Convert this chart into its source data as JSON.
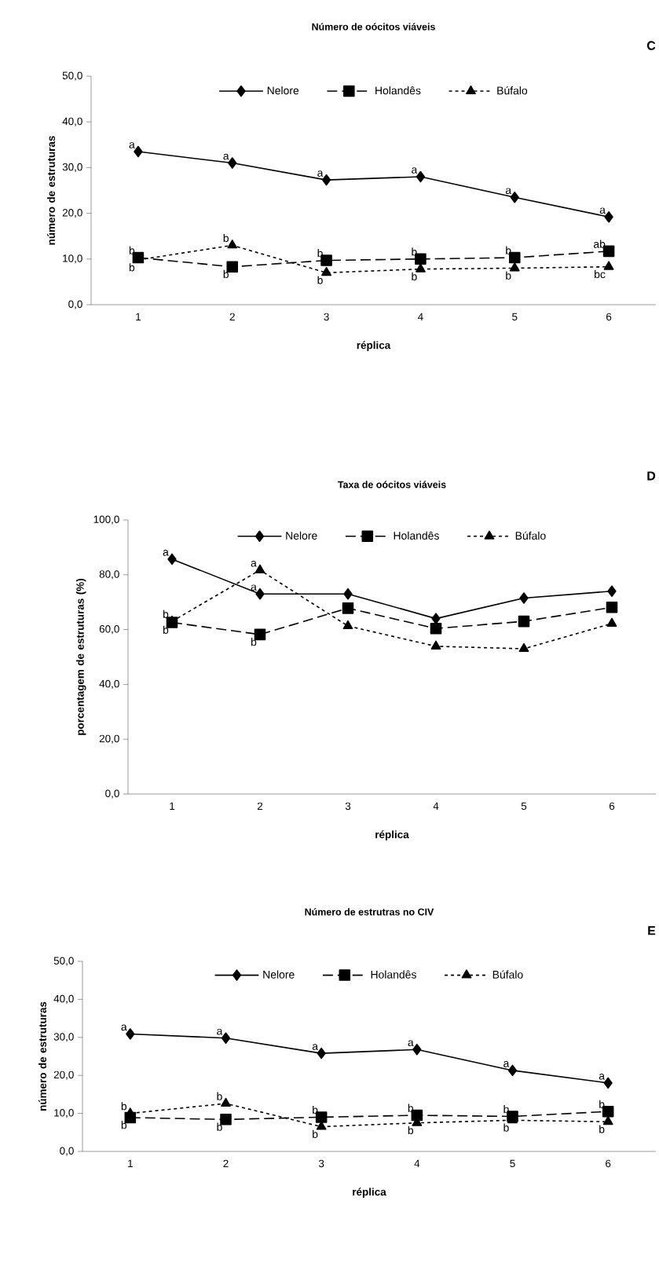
{
  "chart_data": [
    {
      "type": "line",
      "title": "Número de oócitos viáveis",
      "xlabel": "réplica",
      "ylabel": "número de estruturas",
      "categories": [
        "1",
        "2",
        "3",
        "4",
        "5",
        "6"
      ],
      "series": [
        {
          "name": "Nelore",
          "color": "#000000",
          "marker": "diamond",
          "line_style": "solid",
          "values": [
            33.5,
            31.0,
            27.3,
            28.0,
            23.5,
            19.2
          ]
        },
        {
          "name": "Holandês",
          "color": "#000000",
          "marker": "square",
          "line_style": "dashed",
          "values": [
            10.3,
            8.3,
            9.7,
            10.0,
            10.3,
            11.7
          ]
        },
        {
          "name": "Búfalo",
          "color": "#000000",
          "marker": "triangle",
          "line_style": "dotted",
          "values": [
            9.8,
            13.0,
            7.0,
            7.8,
            8.0,
            8.3
          ]
        }
      ],
      "ylim": [
        0,
        50
      ],
      "yticks": [
        {
          "value": 0,
          "label": "0,0"
        },
        {
          "value": 10,
          "label": "10,0"
        },
        {
          "value": 20,
          "label": "20,0"
        },
        {
          "value": 30,
          "label": "30,0"
        },
        {
          "value": 40,
          "label": "40,0"
        },
        {
          "value": 50,
          "label": "50,0"
        }
      ],
      "legend": "top",
      "annotations": [
        "C",
        {
          "text": "a",
          "x": "1",
          "y": 33.5
        },
        {
          "text": "b",
          "x": "1",
          "y": 10.3
        },
        {
          "text": "b",
          "x": "1",
          "y": 9.8
        },
        {
          "text": "a",
          "x": "2",
          "y": 31.0
        },
        {
          "text": "b",
          "x": "2",
          "y": 13.0
        },
        {
          "text": "b",
          "x": "2",
          "y": 8.3
        },
        {
          "text": "a",
          "x": "3",
          "y": 27.3
        },
        {
          "text": "b",
          "x": "3",
          "y": 9.7
        },
        {
          "text": "b",
          "x": "3",
          "y": 7.0
        },
        {
          "text": "a",
          "x": "4",
          "y": 28.0
        },
        {
          "text": "b",
          "x": "4",
          "y": 10.0
        },
        {
          "text": "b",
          "x": "4",
          "y": 7.8
        },
        {
          "text": "a",
          "x": "5",
          "y": 23.5
        },
        {
          "text": "b",
          "x": "5",
          "y": 10.3
        },
        {
          "text": "b",
          "x": "5",
          "y": 8.0
        },
        {
          "text": "a",
          "x": "6",
          "y": 19.2
        },
        {
          "text": "ab",
          "x": "6",
          "y": 11.7
        },
        {
          "text": "bc",
          "x": "6",
          "y": 8.3
        }
      ]
    },
    {
      "type": "line",
      "title": "Taxa de oócitos viáveis",
      "xlabel": "réplica",
      "ylabel": "porcentagem de estruturas (%)",
      "categories": [
        "1",
        "2",
        "3",
        "4",
        "5",
        "6"
      ],
      "series": [
        {
          "name": "Nelore",
          "color": "#000000",
          "marker": "diamond",
          "line_style": "solid",
          "values": [
            85.7,
            73.0,
            73.0,
            64.0,
            71.5,
            74.0
          ]
        },
        {
          "name": "Holandês",
          "color": "#000000",
          "marker": "square",
          "line_style": "dashed",
          "values": [
            62.6,
            58.2,
            67.8,
            60.4,
            63.0,
            68.1
          ]
        },
        {
          "name": "Búfalo",
          "color": "#000000",
          "marker": "triangle",
          "line_style": "dotted",
          "values": [
            63.0,
            81.7,
            61.3,
            53.9,
            53.0,
            62.2
          ]
        }
      ],
      "ylim": [
        0,
        100
      ],
      "yticks": [
        {
          "value": 0,
          "label": "0,0"
        },
        {
          "value": 20,
          "label": "20,0"
        },
        {
          "value": 40,
          "label": "40,0"
        },
        {
          "value": 60,
          "label": "60,0"
        },
        {
          "value": 80,
          "label": "80,0"
        },
        {
          "value": 100,
          "label": "100,0"
        }
      ],
      "legend": "top",
      "annotations": [
        "D",
        {
          "text": "a",
          "x": "1",
          "y": 85.7
        },
        {
          "text": "b",
          "x": "1",
          "y": 63.0
        },
        {
          "text": "b",
          "x": "1",
          "y": 62.6
        },
        {
          "text": "a",
          "x": "2",
          "y": 81.7
        },
        {
          "text": "a",
          "x": "2",
          "y": 73.0
        },
        {
          "text": "b",
          "x": "2",
          "y": 58.2
        }
      ]
    },
    {
      "type": "line",
      "title": "Número de estrutras no CIV",
      "xlabel": "réplica",
      "ylabel": "número de estruturas",
      "categories": [
        "1",
        "2",
        "3",
        "4",
        "5",
        "6"
      ],
      "series": [
        {
          "name": "Nelore",
          "color": "#000000",
          "marker": "diamond",
          "line_style": "solid",
          "values": [
            30.9,
            29.8,
            25.8,
            26.8,
            21.3,
            18.0
          ]
        },
        {
          "name": "Holandês",
          "color": "#000000",
          "marker": "square",
          "line_style": "dashed",
          "values": [
            8.9,
            8.4,
            9.0,
            9.5,
            9.2,
            10.5
          ]
        },
        {
          "name": "Búfalo",
          "color": "#000000",
          "marker": "triangle",
          "line_style": "dotted",
          "values": [
            10.0,
            12.6,
            6.5,
            7.5,
            8.2,
            7.8
          ]
        }
      ],
      "ylim": [
        0,
        50
      ],
      "yticks": [
        {
          "value": 0,
          "label": "0,0"
        },
        {
          "value": 10,
          "label": "10,0"
        },
        {
          "value": 20,
          "label": "20,0"
        },
        {
          "value": 30,
          "label": "30,0"
        },
        {
          "value": 40,
          "label": "40,0"
        },
        {
          "value": 50,
          "label": "50,0"
        }
      ],
      "legend": "top",
      "annotations": [
        "E",
        {
          "text": "a",
          "x": "1",
          "y": 30.9
        },
        {
          "text": "b",
          "x": "1",
          "y": 10.0
        },
        {
          "text": "b",
          "x": "1",
          "y": 8.9
        },
        {
          "text": "a",
          "x": "2",
          "y": 29.8
        },
        {
          "text": "b",
          "x": "2",
          "y": 12.6
        },
        {
          "text": "b",
          "x": "2",
          "y": 8.4
        },
        {
          "text": "a",
          "x": "3",
          "y": 25.8
        },
        {
          "text": "b",
          "x": "3",
          "y": 9.0
        },
        {
          "text": "b",
          "x": "3",
          "y": 6.5
        },
        {
          "text": "a",
          "x": "4",
          "y": 26.8
        },
        {
          "text": "b",
          "x": "4",
          "y": 9.5
        },
        {
          "text": "b",
          "x": "4",
          "y": 7.5
        },
        {
          "text": "a",
          "x": "5",
          "y": 21.3
        },
        {
          "text": "b",
          "x": "5",
          "y": 9.2
        },
        {
          "text": "b",
          "x": "5",
          "y": 8.2
        },
        {
          "text": "a",
          "x": "6",
          "y": 18.0
        },
        {
          "text": "b",
          "x": "6",
          "y": 10.5
        },
        {
          "text": "b",
          "x": "6",
          "y": 7.8
        }
      ]
    }
  ]
}
